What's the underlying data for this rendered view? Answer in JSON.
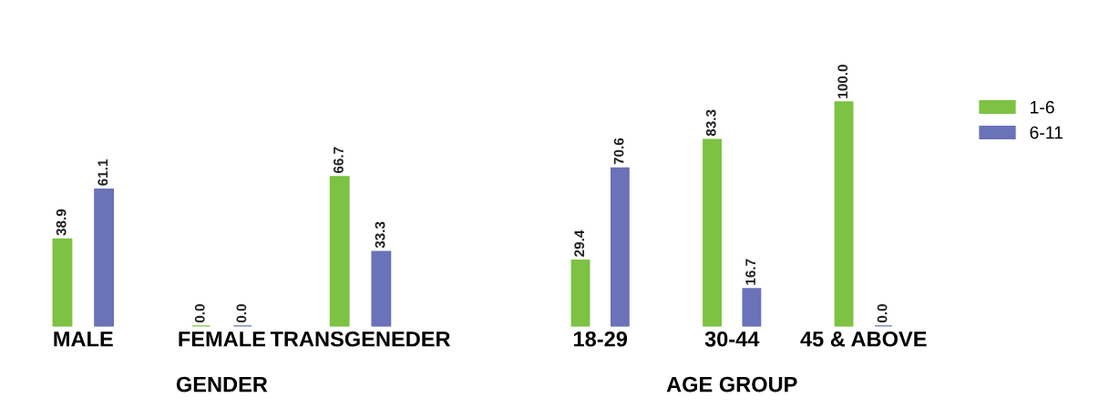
{
  "chart_data": [
    {
      "type": "bar",
      "xlabel": "GENDER",
      "categories": [
        "MALE",
        "FEMALE",
        "TRANSGENEDER"
      ],
      "series": [
        {
          "color": "#7dc243",
          "values": [
            38.9,
            0.0,
            66.7
          ],
          "value_labels": [
            "38.9",
            "0.0",
            "66.7"
          ]
        },
        {
          "color": "#6a72b8",
          "values": [
            61.1,
            0.0,
            33.3
          ],
          "value_labels": [
            "61.1",
            "0.0",
            "33.3"
          ]
        }
      ],
      "tick_labels": "x"
    },
    {
      "type": "bar",
      "xlabel": "AGE GROUP",
      "categories": [
        "18-29",
        "30-44",
        "45 & ABOVE"
      ],
      "series": [
        {
          "name": "1-6",
          "color": "#7dc243",
          "values": [
            29.4,
            83.3,
            100.0
          ],
          "value_labels": [
            "29.4",
            "83.3",
            "100.0"
          ]
        },
        {
          "name": "6-11",
          "color": "#6a72b8",
          "values": [
            70.6,
            16.7,
            0.0
          ],
          "value_labels": [
            "70.6",
            "16.7",
            "0.0"
          ]
        }
      ],
      "tick_labels": "x",
      "legend": "right"
    }
  ]
}
